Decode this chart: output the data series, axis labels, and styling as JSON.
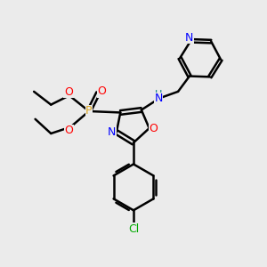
{
  "bg_color": "#ebebeb",
  "atom_colors": {
    "C": "#000000",
    "N": "#0000ff",
    "O": "#ff0000",
    "P": "#daa520",
    "Cl": "#00aa00",
    "H": "#008080"
  },
  "figsize": [
    3.0,
    3.0
  ],
  "dpi": 100
}
